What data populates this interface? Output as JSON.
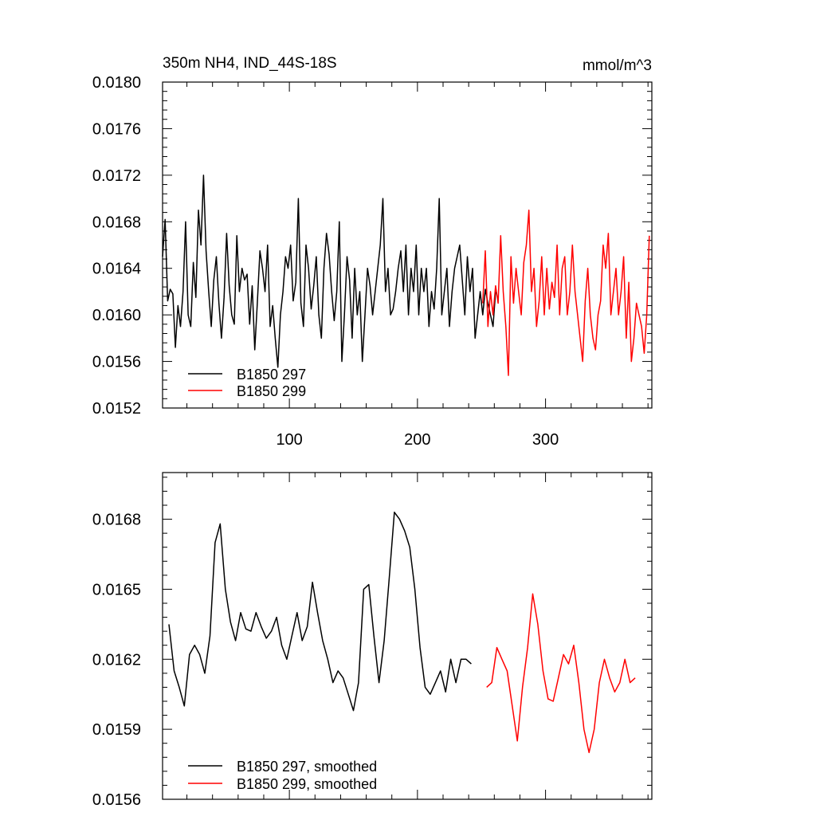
{
  "chart_data": [
    {
      "type": "line",
      "title_left": "350m NH4, IND_44S-18S",
      "title_right": "mmol/m^3",
      "xlabel": "",
      "ylabel": "",
      "xlim": [
        1,
        383
      ],
      "ylim": [
        0.0152,
        0.018
      ],
      "xticks": [
        100,
        200,
        300
      ],
      "xtick_labels": [
        "100",
        "200",
        "300"
      ],
      "yticks": [
        0.0152,
        0.0156,
        0.016,
        0.0164,
        0.0168,
        0.0172,
        0.0176,
        0.018
      ],
      "ytick_labels": [
        "0.0152",
        "0.0156",
        "0.0160",
        "0.0164",
        "0.0168",
        "0.0172",
        "0.0176",
        "0.0180"
      ],
      "legend_position": "bottom-left",
      "series": [
        {
          "name": "B1850 297",
          "color": "#000000",
          "x_start": 1,
          "x_step": 2,
          "values": [
            0.0165,
            0.01682,
            0.01612,
            0.01622,
            0.01618,
            0.01572,
            0.01608,
            0.0159,
            0.0162,
            0.0168,
            0.016,
            0.0159,
            0.01645,
            0.01615,
            0.0169,
            0.0166,
            0.0172,
            0.01655,
            0.0162,
            0.0159,
            0.0163,
            0.0165,
            0.0161,
            0.0158,
            0.01615,
            0.0167,
            0.01625,
            0.016,
            0.01592,
            0.01668,
            0.0162,
            0.0164,
            0.0163,
            0.01635,
            0.01592,
            0.01625,
            0.0157,
            0.0161,
            0.01655,
            0.0164,
            0.0162,
            0.0166,
            0.0159,
            0.01608,
            0.0158,
            0.01555,
            0.016,
            0.0162,
            0.0165,
            0.0164,
            0.0166,
            0.01612,
            0.01628,
            0.017,
            0.0161,
            0.0159,
            0.0166,
            0.0164,
            0.01605,
            0.01625,
            0.0165,
            0.016,
            0.0158,
            0.0164,
            0.0167,
            0.01652,
            0.0162,
            0.01595,
            0.0162,
            0.0168,
            0.0156,
            0.016,
            0.0165,
            0.0163,
            0.0158,
            0.0164,
            0.016,
            0.0162,
            0.0156,
            0.016,
            0.0164,
            0.01625,
            0.016,
            0.0162,
            0.0164,
            0.0166,
            0.017,
            0.0162,
            0.0164,
            0.016,
            0.01605,
            0.0162,
            0.0164,
            0.01655,
            0.0162,
            0.0166,
            0.016,
            0.0164,
            0.0162,
            0.0166,
            0.016,
            0.0164,
            0.0162,
            0.0164,
            0.0159,
            0.0162,
            0.01605,
            0.0164,
            0.017,
            0.016,
            0.0162,
            0.0164,
            0.0159,
            0.0162,
            0.0164,
            0.0165,
            0.0166,
            0.0163,
            0.016,
            0.0165,
            0.0162,
            0.0164,
            0.0158,
            0.016,
            0.0162,
            0.016,
            0.01622,
            0.0161,
            0.016,
            0.0159,
            0.0162
          ]
        },
        {
          "name": "B1850 299",
          "color": "#ff0000",
          "x_start": 251,
          "x_step": 2,
          "values": [
            0.0161,
            0.01655,
            0.0159,
            0.0162,
            0.016,
            0.01625,
            0.0161,
            0.01668,
            0.0162,
            0.0159,
            0.01548,
            0.0165,
            0.0161,
            0.0164,
            0.0162,
            0.016,
            0.01645,
            0.0166,
            0.0169,
            0.0162,
            0.0164,
            0.0159,
            0.01612,
            0.0165,
            0.016,
            0.0164,
            0.01605,
            0.01628,
            0.01615,
            0.0166,
            0.016,
            0.0164,
            0.0165,
            0.016,
            0.0162,
            0.0166,
            0.0162,
            0.016,
            0.0158,
            0.0156,
            0.01612,
            0.0164,
            0.016,
            0.0158,
            0.0157,
            0.016,
            0.01612,
            0.0166,
            0.0164,
            0.0167,
            0.016,
            0.0162,
            0.0164,
            0.016,
            0.0162,
            0.0165,
            0.0158,
            0.01628,
            0.0156,
            0.0158,
            0.0161,
            0.016,
            0.0159,
            0.01567,
            0.016,
            0.01668
          ]
        }
      ]
    },
    {
      "type": "line",
      "xlim": [
        1,
        383
      ],
      "ylim": [
        0.0156,
        0.017
      ],
      "xticks": [
        100,
        200,
        300
      ],
      "yticks": [
        0.0156,
        0.0159,
        0.0162,
        0.0165,
        0.0168
      ],
      "ytick_labels": [
        "0.0156",
        "0.0159",
        "0.0162",
        "0.0165",
        "0.0168"
      ],
      "legend_position": "bottom-left",
      "series": [
        {
          "name": "B1850 297, smoothed",
          "color": "#000000",
          "x_start": 6,
          "x_step": 4,
          "values": [
            0.01635,
            0.01615,
            0.01608,
            0.016,
            0.01622,
            0.01626,
            0.01622,
            0.01614,
            0.0163,
            0.0167,
            0.01678,
            0.0165,
            0.01636,
            0.01628,
            0.0164,
            0.01633,
            0.01632,
            0.0164,
            0.01634,
            0.01629,
            0.01632,
            0.01638,
            0.01626,
            0.0162,
            0.0163,
            0.0164,
            0.01628,
            0.01634,
            0.01653,
            0.0164,
            0.01628,
            0.0162,
            0.0161,
            0.01615,
            0.01612,
            0.01605,
            0.01598,
            0.0161,
            0.0165,
            0.01652,
            0.0163,
            0.0161,
            0.01628,
            0.01655,
            0.01683,
            0.0168,
            0.01675,
            0.01668,
            0.0165,
            0.01625,
            0.01608,
            0.01605,
            0.0161,
            0.01615,
            0.01606,
            0.0162,
            0.0161,
            0.0162,
            0.0162,
            0.01618
          ]
        },
        {
          "name": "B1850 299, smoothed",
          "color": "#ff0000",
          "x_start": 254,
          "x_step": 4,
          "values": [
            0.01608,
            0.0161,
            0.01625,
            0.0162,
            0.01615,
            0.016,
            0.01585,
            0.01608,
            0.01625,
            0.01648,
            0.01635,
            0.01615,
            0.01603,
            0.01602,
            0.01612,
            0.01622,
            0.01618,
            0.01626,
            0.0161,
            0.0159,
            0.0158,
            0.0159,
            0.0161,
            0.0162,
            0.01612,
            0.01606,
            0.0161,
            0.0162,
            0.0161,
            0.01612
          ]
        }
      ]
    }
  ]
}
